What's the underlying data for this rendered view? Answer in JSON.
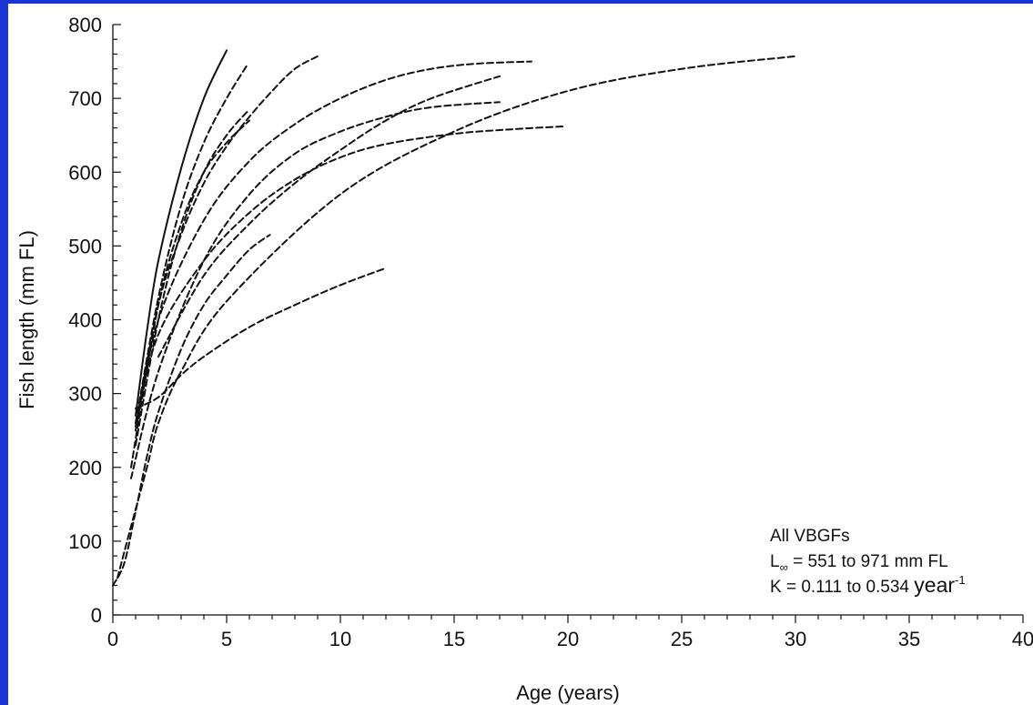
{
  "chart_data": {
    "type": "line",
    "title": "",
    "xlabel": "Age (years)",
    "ylabel": "Fish length (mm FL)",
    "xlim": [
      0,
      40
    ],
    "ylim": [
      0,
      800
    ],
    "x_major_ticks": [
      0,
      5,
      10,
      15,
      20,
      25,
      30,
      35,
      40
    ],
    "x_tick_labels": [
      "0",
      "5",
      "10",
      "15",
      "20",
      "25",
      "30",
      "35",
      "40"
    ],
    "y_major_ticks": [
      0,
      100,
      200,
      300,
      400,
      500,
      600,
      700,
      800
    ],
    "y_tick_labels": [
      "0",
      "100",
      "200",
      "300",
      "400",
      "500",
      "600",
      "700",
      "800"
    ],
    "grid": false,
    "legend": "none",
    "annotation": {
      "line1": "All VBGFs",
      "line2_prefix": "L",
      "line2_sub": "∞",
      "line2_suffix": " = 551 to 971 mm FL",
      "line3_main": "K = 0.111 to 0.534 ",
      "line3_unit": "year",
      "line3_sup": "-1"
    },
    "series": [
      {
        "style": "solid",
        "x": [
          1.0,
          1.5,
          2.0,
          3.0,
          4.0,
          5.0
        ],
        "y": [
          270,
          385,
          480,
          605,
          700,
          765
        ]
      },
      {
        "style": "dashed",
        "x": [
          1.0,
          2.0,
          3.0,
          4.0,
          5.0,
          5.9
        ],
        "y": [
          260,
          430,
          555,
          640,
          700,
          745
        ]
      },
      {
        "style": "dashed",
        "x": [
          1.0,
          2.0,
          3.0,
          4.0,
          5.0,
          6.0
        ],
        "y": [
          230,
          400,
          520,
          600,
          650,
          685
        ]
      },
      {
        "style": "dashed",
        "x": [
          0.8,
          2.0,
          3.0,
          4.0,
          5.0,
          6.0
        ],
        "y": [
          200,
          420,
          530,
          600,
          640,
          670
        ]
      },
      {
        "style": "dashed",
        "x": [
          1.0,
          2.0,
          3.0,
          4.0,
          5.0,
          6.0,
          7.0,
          8.0,
          9.0
        ],
        "y": [
          255,
          420,
          515,
          585,
          635,
          675,
          710,
          740,
          757
        ]
      },
      {
        "style": "dashed",
        "x": [
          1.0,
          2.0,
          4.0,
          6.0,
          8.0,
          10.0,
          12.0,
          14.0,
          16.0,
          18.4
        ],
        "y": [
          250,
          400,
          535,
          615,
          665,
          700,
          725,
          740,
          747,
          750
        ]
      },
      {
        "style": "dashed",
        "x": [
          2.0,
          4.0,
          6.0,
          8.0,
          10.0,
          12.0,
          14.0,
          17.0
        ],
        "y": [
          350,
          460,
          530,
          585,
          630,
          670,
          700,
          730
        ]
      },
      {
        "style": "dashed",
        "x": [
          0.8,
          2.0,
          4.0,
          6.0,
          8.0,
          10.0,
          12.0,
          14.0,
          17.0
        ],
        "y": [
          185,
          330,
          480,
          570,
          625,
          655,
          675,
          688,
          695
        ]
      },
      {
        "style": "dashed",
        "x": [
          1.0,
          2.0,
          4.0,
          6.0,
          8.0,
          10.0,
          12.0,
          15.0,
          17.5,
          19.8
        ],
        "y": [
          260,
          380,
          480,
          545,
          590,
          620,
          638,
          652,
          658,
          662
        ]
      },
      {
        "style": "dashed",
        "x": [
          0.0,
          0.5,
          1.0,
          1.5,
          2.0,
          3.0,
          4.0,
          5.0,
          6.0,
          6.9
        ],
        "y": [
          40,
          70,
          140,
          215,
          275,
          360,
          420,
          460,
          495,
          515
        ]
      },
      {
        "style": "dashed",
        "x": [
          0.2,
          0.8,
          1.5,
          2.0,
          3.0,
          5.0,
          10.0,
          15.0,
          20.0,
          25.0,
          30.0
        ],
        "y": [
          50,
          120,
          200,
          260,
          330,
          425,
          570,
          655,
          710,
          740,
          757
        ]
      },
      {
        "style": "dashed",
        "x": [
          1.0,
          2.0,
          3.0,
          4.0,
          6.0,
          8.0,
          10.0,
          12.0
        ],
        "y": [
          280,
          295,
          325,
          350,
          390,
          420,
          447,
          470
        ]
      }
    ]
  }
}
